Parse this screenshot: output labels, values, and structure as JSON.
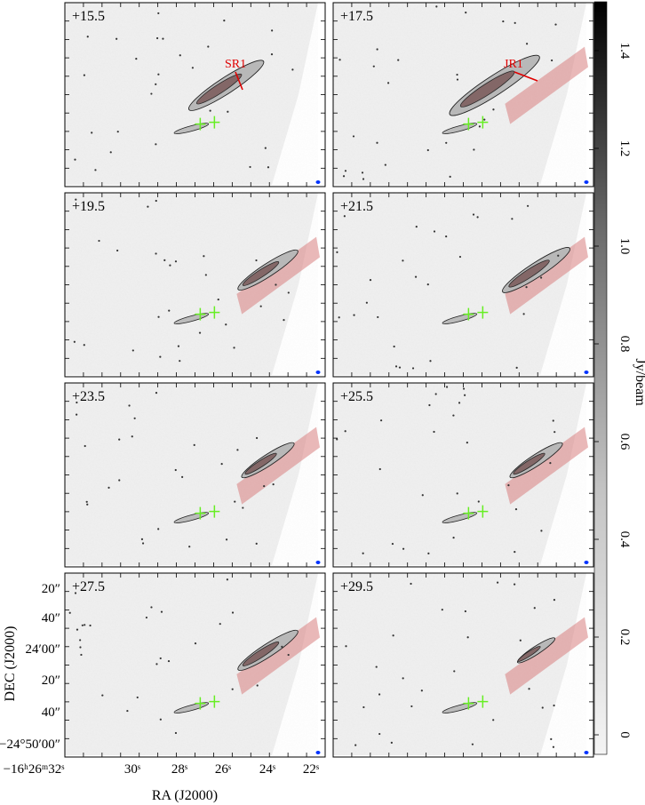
{
  "chart_data": {
    "type": "heatmap",
    "description_grid": "channel maps",
    "panels": [
      {
        "velocity": "+15.5",
        "annotation": "SR1",
        "has_jet_band": false,
        "emission_level": 1.0
      },
      {
        "velocity": "+17.5",
        "annotation": "JR1",
        "has_jet_band": true,
        "emission_level": 1.2
      },
      {
        "velocity": "+19.5",
        "annotation": "",
        "has_jet_band": true,
        "emission_level": 0.8
      },
      {
        "velocity": "+21.5",
        "annotation": "",
        "has_jet_band": true,
        "emission_level": 0.9
      },
      {
        "velocity": "+23.5",
        "annotation": "",
        "has_jet_band": true,
        "emission_level": 0.7
      },
      {
        "velocity": "+25.5",
        "annotation": "",
        "has_jet_band": true,
        "emission_level": 0.7
      },
      {
        "velocity": "+27.5",
        "annotation": "",
        "has_jet_band": true,
        "emission_level": 0.8
      },
      {
        "velocity": "+29.5",
        "annotation": "",
        "has_jet_band": true,
        "emission_level": 0.5
      }
    ],
    "xlabel": "RA (J2000)",
    "ylabel": "DEC (J2000)",
    "x_ticks": [
      "−16ʰ26ᵐ32ˢ",
      "30ˢ",
      "28ˢ",
      "26ˢ",
      "24ˢ",
      "22ˢ"
    ],
    "y_ticks": [
      "20″",
      "40″",
      "24′00″",
      "20″",
      "40″",
      "−24°50′00″"
    ],
    "colorbar": {
      "label": "Jy/beam",
      "ticks": [
        "1.4",
        "1.2",
        "1.0",
        "0.8",
        "0.6",
        "0.4",
        "0.2",
        "0"
      ],
      "tick_values": [
        1.4,
        1.2,
        1.0,
        0.8,
        0.6,
        0.4,
        0.2,
        0.0
      ],
      "range": [
        -0.04,
        1.5
      ],
      "colormap": "gray_r"
    },
    "colors": {
      "annotation": "#e00000",
      "jet_band": "#d98080",
      "source_markers": "#66ee22",
      "beam": "#0033ff"
    }
  }
}
